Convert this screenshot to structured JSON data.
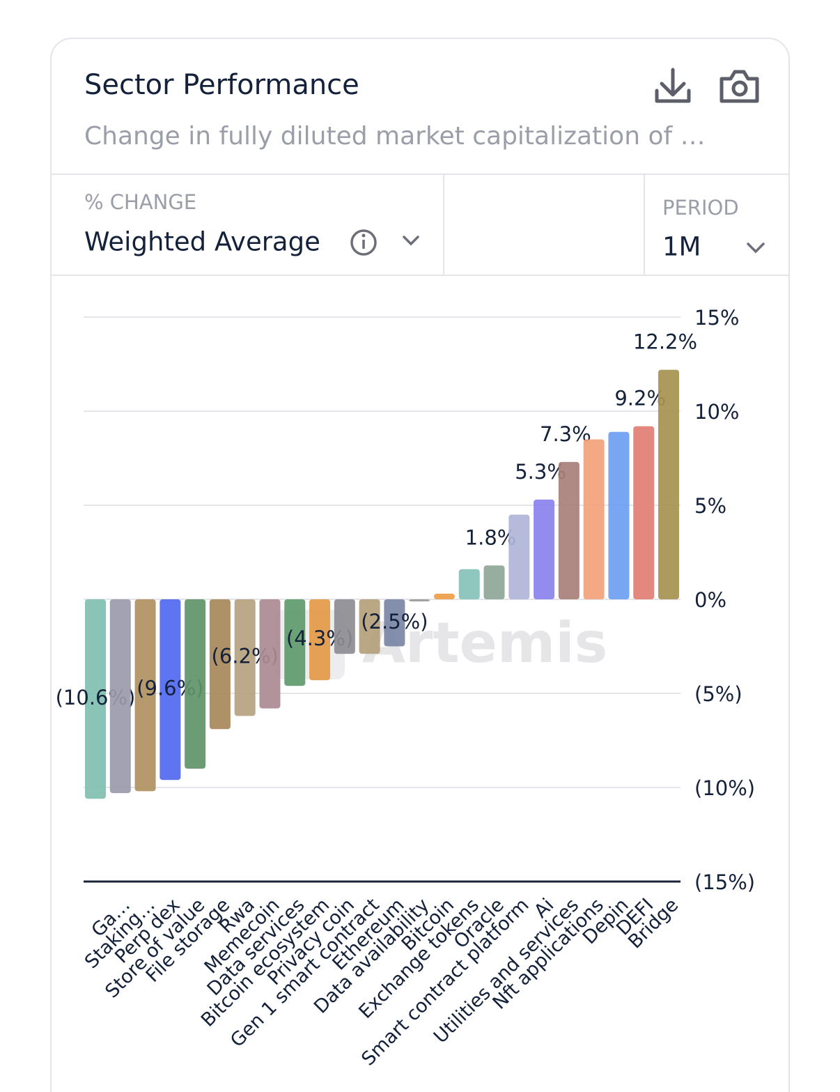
{
  "header": {
    "title": "Sector Performance",
    "subtitle": "Change in fully diluted market capitalization of …"
  },
  "controls": {
    "metric_label": "% CHANGE",
    "metric_value": "Weighted Average",
    "period_label": "PERIOD",
    "period_value": "1M"
  },
  "watermark": "Artemis",
  "chart_data": {
    "type": "bar",
    "categories": [
      null,
      "Ga…",
      "Staking…",
      "Perp dex",
      "Store of value",
      "File storage",
      "Rwa",
      "Memecoin",
      "Data services",
      "Bitcoin ecosystem",
      "Privacy coin",
      "Gen 1 smart contract",
      "Ethereum",
      "Data availability",
      "Bitcoin",
      "Exchange tokens",
      "Oracle",
      "Smart contract platform",
      "Ai",
      "Utilities and services",
      "Nft applications",
      "Depin",
      "DEFI",
      "Bridge"
    ],
    "values": [
      -10.6,
      -10.3,
      -10.2,
      -9.6,
      -9.0,
      -6.9,
      -6.2,
      -5.8,
      -4.6,
      -4.3,
      -2.9,
      -2.9,
      -2.5,
      -0.1,
      0.3,
      1.6,
      1.8,
      4.5,
      5.3,
      7.3,
      8.5,
      8.9,
      9.2,
      12.2
    ],
    "value_labels": [
      "(10.6%)",
      null,
      null,
      "(9.6%)",
      null,
      null,
      "(6.2%)",
      null,
      null,
      "(4.3%)",
      null,
      null,
      "(2.5%)",
      null,
      null,
      null,
      "1.8%",
      null,
      "5.3%",
      "7.3%",
      null,
      null,
      "9.2%",
      "12.2%"
    ],
    "colors": [
      "#7fbfb0",
      "#9a9aab",
      "#b09060",
      "#5068f0",
      "#5f9468",
      "#a8885a",
      "#b5a280",
      "#ad8a92",
      "#5f9a6c",
      "#e49a45",
      "#8c8c92",
      "#b4a07a",
      "#7a86a5",
      "#9a9a9a",
      "#ee9d45",
      "#85c2b8",
      "#8da698",
      "#b0b5d8",
      "#8a82ee",
      "#a87f78",
      "#f2a27a",
      "#6e9ef2",
      "#e27e74",
      "#a6914f"
    ],
    "ylim": [
      -15,
      15
    ],
    "yticks": [
      {
        "value": 15,
        "label": "15%"
      },
      {
        "value": 10,
        "label": "10%"
      },
      {
        "value": 5,
        "label": "5%"
      },
      {
        "value": 0,
        "label": "0%"
      },
      {
        "value": -5,
        "label": "(5%)"
      },
      {
        "value": -10,
        "label": "(10%)"
      },
      {
        "value": -15,
        "label": "(15%)"
      }
    ],
    "grid": true
  }
}
